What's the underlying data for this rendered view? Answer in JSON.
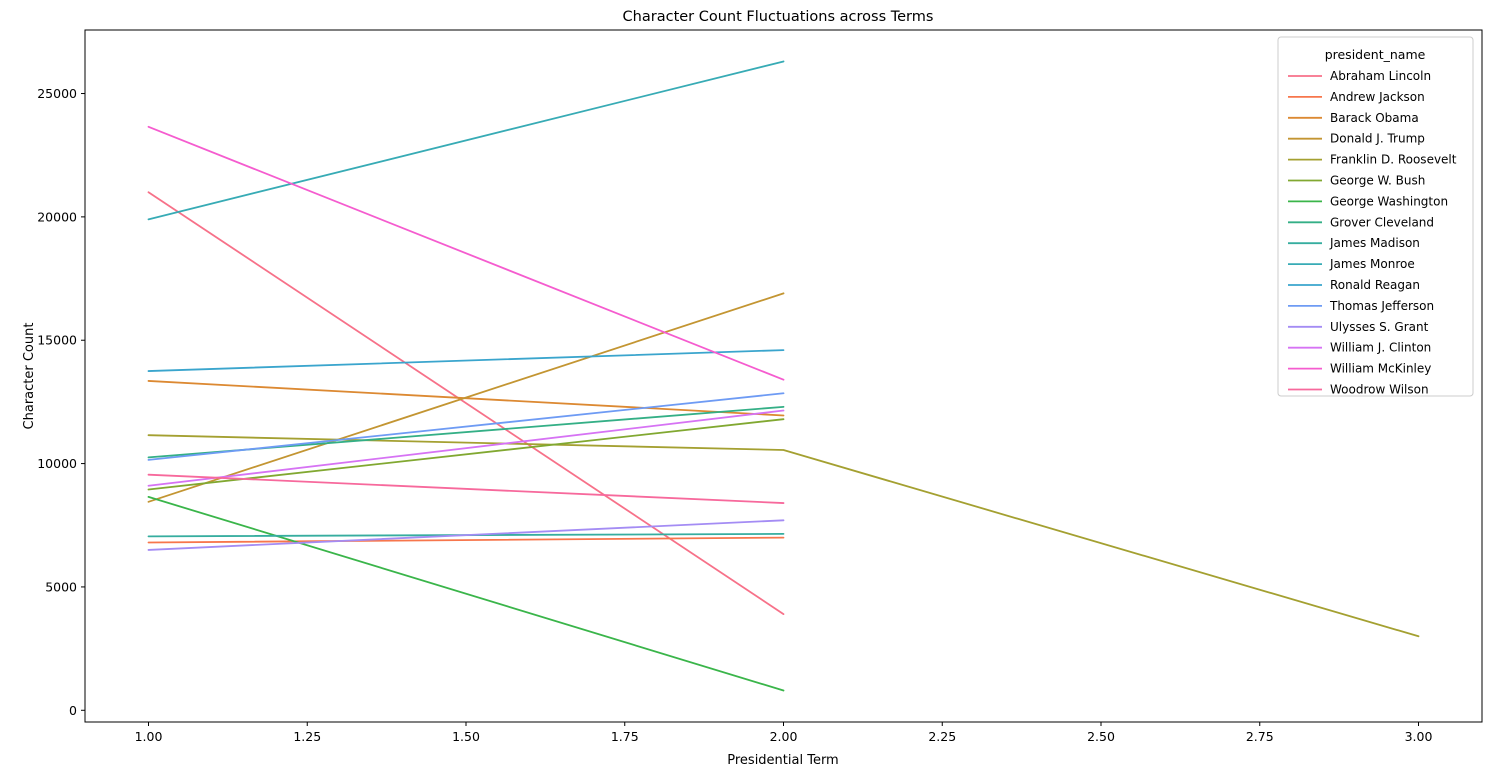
{
  "chart_data": {
    "type": "line",
    "title": "Character Count Fluctuations across Terms",
    "xlabel": "Presidential Term",
    "ylabel": "Character Count",
    "legend_title": "president_name",
    "legend_position": "upper right",
    "grid": false,
    "xlim": [
      0.9,
      3.1
    ],
    "ylim": [
      -475,
      27575
    ],
    "xticks": [
      1.0,
      1.25,
      1.5,
      1.75,
      2.0,
      2.25,
      2.5,
      2.75,
      3.0
    ],
    "yticks": [
      0,
      5000,
      10000,
      15000,
      20000,
      25000
    ],
    "series": [
      {
        "name": "Abraham Lincoln",
        "color": "#f77189",
        "x": [
          1,
          2
        ],
        "y": [
          21000,
          3900
        ]
      },
      {
        "name": "Andrew Jackson",
        "color": "#f7764c",
        "x": [
          1,
          2
        ],
        "y": [
          6800,
          7000
        ]
      },
      {
        "name": "Barack Obama",
        "color": "#dc8932",
        "x": [
          1,
          2
        ],
        "y": [
          13350,
          11950
        ]
      },
      {
        "name": "Donald J. Trump",
        "color": "#c39532",
        "x": [
          1,
          2
        ],
        "y": [
          8450,
          16900
        ]
      },
      {
        "name": "Franklin D. Roosevelt",
        "color": "#a4a031",
        "x": [
          1,
          2,
          3
        ],
        "y": [
          11150,
          10550,
          3000
        ]
      },
      {
        "name": "George W. Bush",
        "color": "#81a831",
        "x": [
          1,
          2
        ],
        "y": [
          8950,
          11800
        ]
      },
      {
        "name": "George Washington",
        "color": "#3ab54a",
        "x": [
          1,
          2
        ],
        "y": [
          8650,
          800
        ]
      },
      {
        "name": "Grover Cleveland",
        "color": "#34af86",
        "x": [
          1,
          2
        ],
        "y": [
          10250,
          12300
        ]
      },
      {
        "name": "James Madison",
        "color": "#36ad9f",
        "x": [
          1,
          2
        ],
        "y": [
          7050,
          7150
        ]
      },
      {
        "name": "James Monroe",
        "color": "#37abb5",
        "x": [
          1,
          2
        ],
        "y": [
          19900,
          26300
        ]
      },
      {
        "name": "Ronald Reagan",
        "color": "#3aa5cd",
        "x": [
          1,
          2
        ],
        "y": [
          13750,
          14600
        ]
      },
      {
        "name": "Thomas Jefferson",
        "color": "#6e9bf4",
        "x": [
          1,
          2
        ],
        "y": [
          10150,
          12850
        ]
      },
      {
        "name": "Ulysses S. Grant",
        "color": "#a48cf4",
        "x": [
          1,
          2
        ],
        "y": [
          6500,
          7700
        ]
      },
      {
        "name": "William J. Clinton",
        "color": "#d673f4",
        "x": [
          1,
          2
        ],
        "y": [
          9100,
          12150
        ]
      },
      {
        "name": "William McKinley",
        "color": "#f55ccf",
        "x": [
          1,
          2
        ],
        "y": [
          23650,
          13400
        ]
      },
      {
        "name": "Woodrow Wilson",
        "color": "#f7699c",
        "x": [
          1,
          2
        ],
        "y": [
          9550,
          8400
        ]
      }
    ]
  }
}
